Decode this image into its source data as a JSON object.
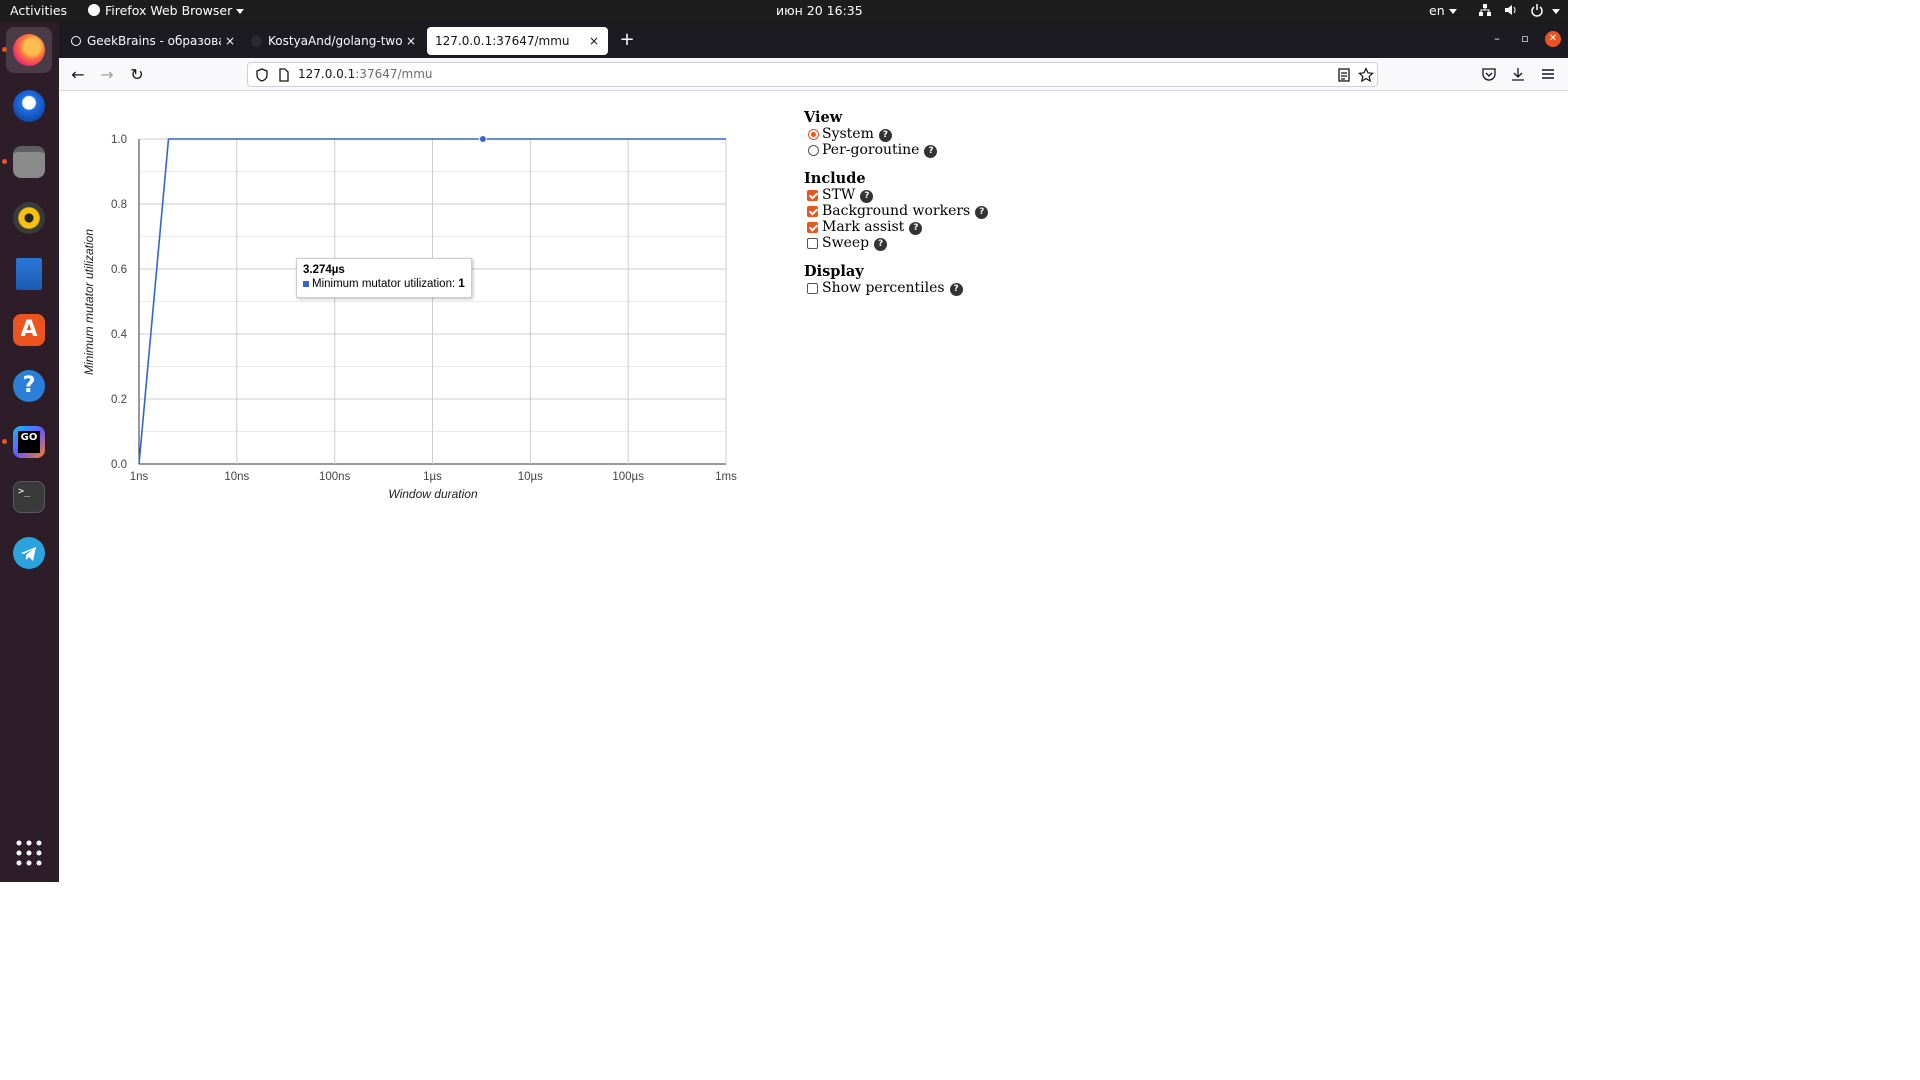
{
  "topbar": {
    "activities": "Activities",
    "app_menu": "Firefox Web Browser",
    "clock": "июн 20  16:35",
    "lang": "en"
  },
  "dock": {
    "apps": [
      "firefox-icon",
      "thunderbird-icon",
      "files-icon",
      "rhythmbox-icon",
      "libreoffice-writer-icon",
      "software-icon",
      "help-icon",
      "goland-icon",
      "terminal-icon",
      "telegram-icon"
    ],
    "show_apps": "show-applications-icon"
  },
  "tabs": [
    {
      "label": "GeekBrains - образовате",
      "close": "×"
    },
    {
      "label": "KostyaAnd/golang-two",
      "close": "×"
    },
    {
      "label": "127.0.0.1:37647/mmu",
      "close": "×"
    }
  ],
  "newtab": "+",
  "window": {
    "min": "–",
    "max": "▫",
    "close": "✕"
  },
  "nav": {
    "back": "←",
    "forward": "→",
    "reload": "↻"
  },
  "url": {
    "host": "127.0.0.1",
    "rest": ":37647/mmu"
  },
  "chart_data": {
    "type": "line",
    "xlabel": "Window duration",
    "ylabel": "Minimum mutator utilization",
    "x_scale": "log",
    "x_ticks": [
      "1ns",
      "10ns",
      "100ns",
      "1µs",
      "10µs",
      "100µs",
      "1ms"
    ],
    "y_ticks": [
      "0.0",
      "0.2",
      "0.4",
      "0.6",
      "0.8",
      "1.0"
    ],
    "ylim": [
      0,
      1
    ],
    "xlim_ns": [
      1,
      1000000
    ],
    "grid": true,
    "series": [
      {
        "color": "#3366cc",
        "x_ns": [
          1,
          2,
          3274,
          1000000
        ],
        "y": [
          0,
          1,
          1,
          1
        ]
      }
    ],
    "highlight_point": {
      "x_ns": 3274,
      "y": 1
    }
  },
  "tooltip": {
    "title": "3.274µs",
    "label": "Minimum mutator utilization: ",
    "value": "1"
  },
  "panel": {
    "view_heading": "View",
    "view_options": [
      {
        "label": "System",
        "selected": true
      },
      {
        "label": "Per-goroutine",
        "selected": false
      }
    ],
    "include_heading": "Include",
    "include_options": [
      {
        "label": "STW",
        "checked": true
      },
      {
        "label": "Background workers",
        "checked": true
      },
      {
        "label": "Mark assist",
        "checked": true
      },
      {
        "label": "Sweep",
        "checked": false
      }
    ],
    "display_heading": "Display",
    "display_options": [
      {
        "label": "Show percentiles",
        "checked": false
      }
    ],
    "help_glyph": "?"
  }
}
